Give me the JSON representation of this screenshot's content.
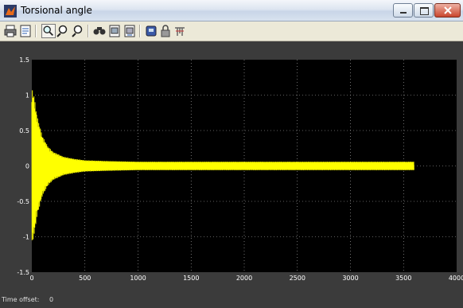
{
  "window": {
    "title": "Torsional angle"
  },
  "toolbar": {
    "buttons": [
      {
        "icon": "print-icon"
      },
      {
        "icon": "parameters-icon"
      },
      {
        "icon": "zoom-icon",
        "pressed": true
      },
      {
        "icon": "zoom-x-icon"
      },
      {
        "icon": "zoom-y-icon"
      },
      {
        "icon": "autoscale-icon"
      },
      {
        "icon": "save-axes-icon"
      },
      {
        "icon": "restore-axes-icon"
      },
      {
        "icon": "floating-scope-icon"
      },
      {
        "icon": "lock-icon"
      },
      {
        "icon": "signal-selection-icon"
      }
    ]
  },
  "status": {
    "time_offset_label": "Time offset:",
    "time_offset_value": "0"
  },
  "colors": {
    "plot_background": "#000000",
    "signal": "#ffff00",
    "axes_text": "#ffffff",
    "frame": "#3b3b3b"
  },
  "chart_data": {
    "type": "line",
    "title": "",
    "xlabel": "",
    "ylabel": "",
    "xlim": [
      0,
      4000
    ],
    "ylim": [
      -1.5,
      1.5
    ],
    "x_ticks": [
      "0",
      "500",
      "1000",
      "1500",
      "2000",
      "2500",
      "3000",
      "3500",
      "4000"
    ],
    "y_ticks": [
      "1.5",
      "1",
      "0.5",
      "0",
      "-0.5",
      "-1",
      "-1.5"
    ],
    "grid": true,
    "series": [
      {
        "color": "#ffff00",
        "description": "oscillating signal, envelope shown as amplitude vs time",
        "envelope": {
          "x": [
            0,
            20,
            50,
            100,
            150,
            200,
            300,
            400,
            500,
            700,
            1000,
            1500,
            2000,
            3000,
            3600
          ],
          "amplitude": [
            1.1,
            1.0,
            0.7,
            0.42,
            0.28,
            0.2,
            0.13,
            0.1,
            0.08,
            0.07,
            0.06,
            0.06,
            0.06,
            0.06,
            0.06
          ]
        },
        "x_end": 3600
      }
    ]
  }
}
